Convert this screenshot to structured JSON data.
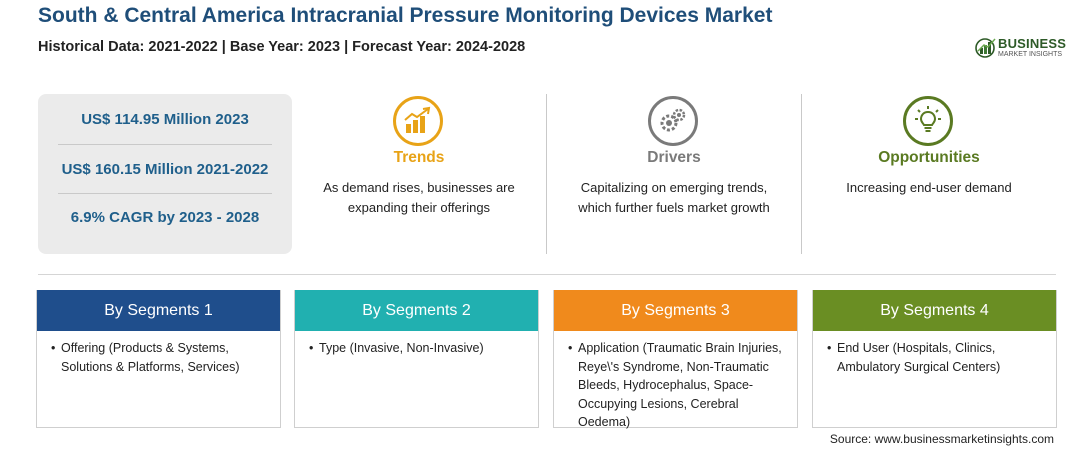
{
  "header": {
    "title": "South & Central America Intracranial Pressure Monitoring Devices Market",
    "subtitle": "Historical Data: 2021-2022 | Base Year: 2023 | Forecast Year: 2024-2028"
  },
  "logo": {
    "name": "BUSINESS",
    "tagline": "MARKET INSIGHTS"
  },
  "stats": [
    "US$ 114.95 Million 2023",
    "US$ 160.15 Million 2021-2022",
    "6.9% CAGR by 2023 - 2028"
  ],
  "features": [
    {
      "title": "Trends",
      "desc": "As demand rises, businesses are expanding their offerings",
      "color": "#e8a317",
      "icon": "trend-chart-icon"
    },
    {
      "title": "Drivers",
      "desc": "Capitalizing on emerging trends, which further fuels market growth",
      "color": "#7a7a7a",
      "icon": "gears-icon"
    },
    {
      "title": "Opportunities",
      "desc": "Increasing end-user demand",
      "color": "#5a7a22",
      "icon": "lightbulb-icon"
    }
  ],
  "segments": [
    {
      "title": "By Segments 1",
      "color": "#1f4e8c",
      "item": "Offering (Products & Systems, Solutions & Platforms, Services)"
    },
    {
      "title": "By Segments 2",
      "color": "#21b0b0",
      "item": "Type (Invasive, Non-Invasive)"
    },
    {
      "title": "By Segments 3",
      "color": "#f08a1c",
      "item": "Application (Traumatic Brain Injuries, Reye\\'s Syndrome, Non-Traumatic Bleeds, Hydrocephalus, Space-Occupying Lesions, Cerebral Oedema)"
    },
    {
      "title": "By Segments 4",
      "color": "#6a8e23",
      "item": "End User (Hospitals, Clinics, Ambulatory Surgical Centers)"
    }
  ],
  "source": "Source: www.businessmarketinsights.com",
  "bullet": "•"
}
